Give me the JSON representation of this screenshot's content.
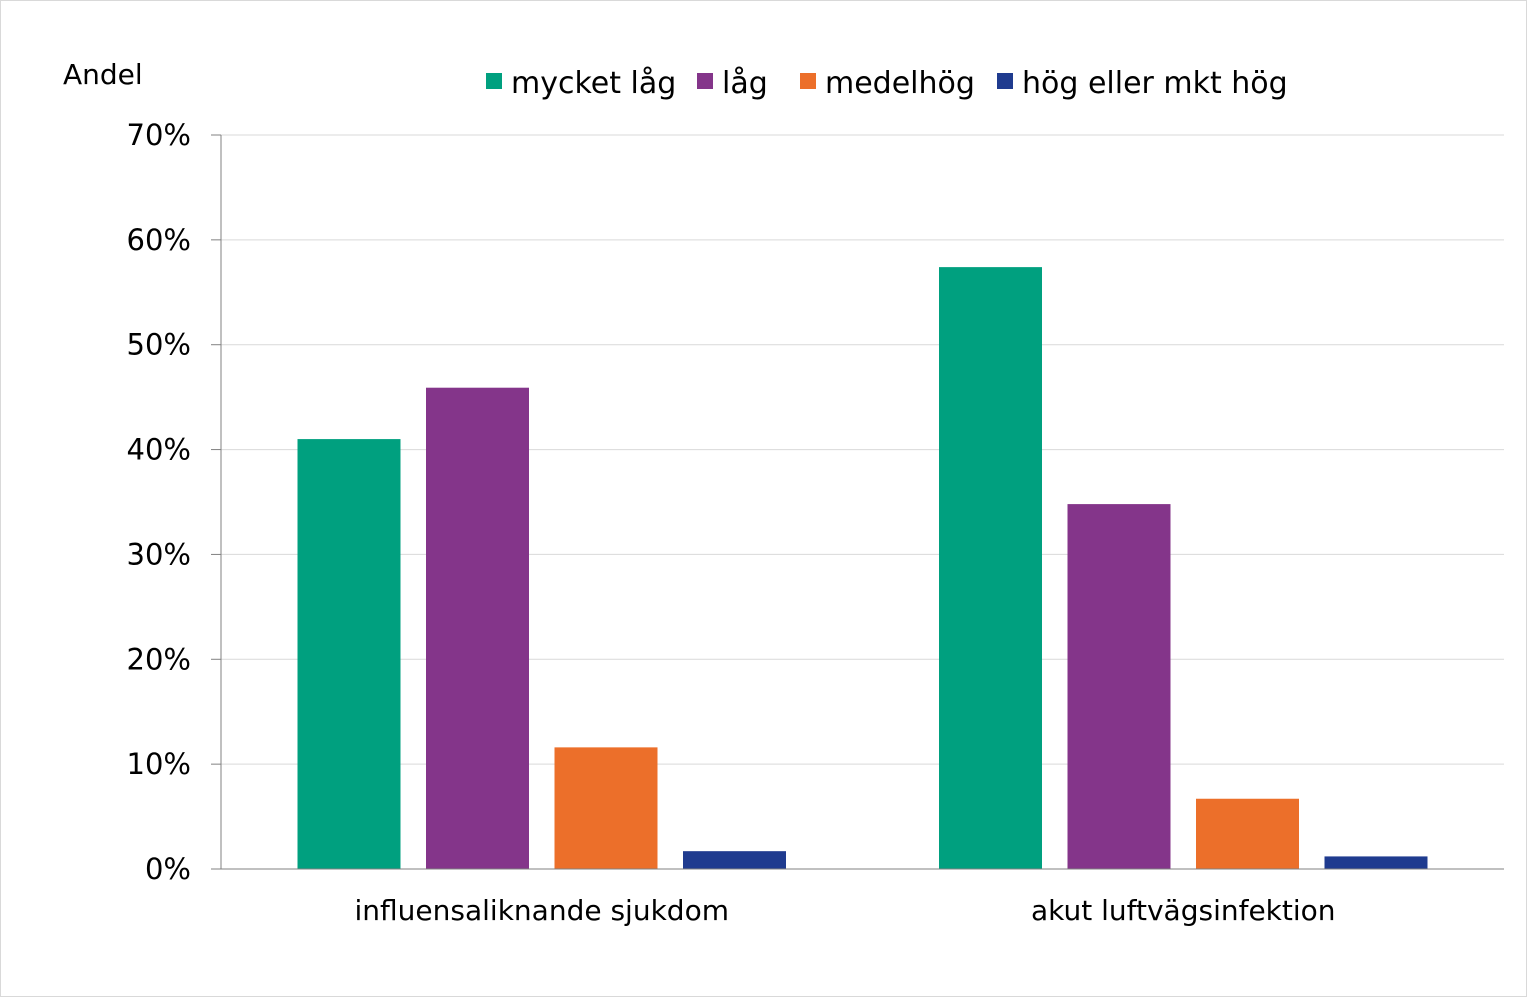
{
  "chart_data": {
    "type": "bar",
    "ylabel": "Andel",
    "ylim": [
      0,
      70
    ],
    "yticks": [
      "0%",
      "10%",
      "20%",
      "30%",
      "40%",
      "50%",
      "60%",
      "70%"
    ],
    "ytick_values": [
      0,
      10,
      20,
      30,
      40,
      50,
      60,
      70
    ],
    "categories": [
      "influensaliknande sjukdom",
      "akut luftvägsinfektion"
    ],
    "series": [
      {
        "name": "mycket låg",
        "color": "#00a07f",
        "values": [
          41.0,
          57.4
        ]
      },
      {
        "name": "låg",
        "color": "#84358a",
        "values": [
          45.9,
          34.8
        ]
      },
      {
        "name": "medelhög",
        "color": "#ec6f2a",
        "values": [
          11.6,
          6.7
        ]
      },
      {
        "name": "hög eller mkt hög",
        "color": "#1f3b8f",
        "values": [
          1.7,
          1.2
        ]
      }
    ],
    "grid": true,
    "legend_position": "top"
  }
}
